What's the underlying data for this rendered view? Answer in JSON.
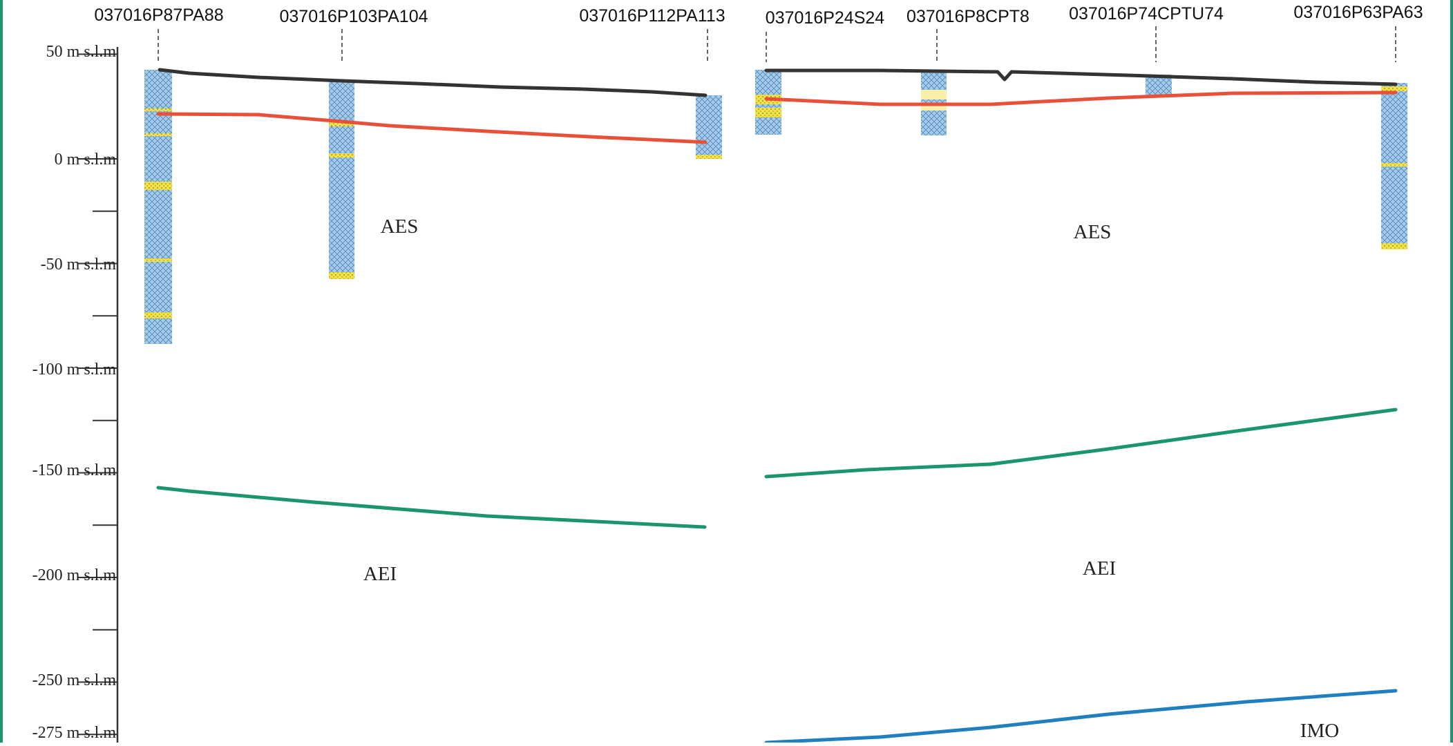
{
  "colors": {
    "surface": "#333333",
    "red_horizon": "#e8503a",
    "green_horizon": "#1a9570",
    "blue_horizon": "#1f7fbf",
    "borehole_fill": "#9cc3e0",
    "sand_layer": "#f2e24a",
    "frame": "#1a9570"
  },
  "axis": {
    "ticks": [
      {
        "label": "50 m s.l.m",
        "value": 50
      },
      {
        "label": "0 m s.l.m",
        "value": 0
      },
      {
        "label": "-50 m s.l.m",
        "value": -50
      },
      {
        "label": "-100 m s.l.m",
        "value": -100
      },
      {
        "label": "-150 m s.l.m",
        "value": -150
      },
      {
        "label": "-200 m s.l.m",
        "value": -200
      },
      {
        "label": "-250 m s.l.m",
        "value": -250
      },
      {
        "label": "-275 m s.l.m",
        "value": -275
      }
    ],
    "minor_ticks": [
      -25,
      -75,
      -125,
      -175,
      -225
    ]
  },
  "wells": [
    {
      "name": "037016P87PA88",
      "top": 44,
      "bottom": -87,
      "sand": [
        22,
        12,
        -11,
        -47,
        -74
      ]
    },
    {
      "name": "037016P103PA104",
      "top": 38,
      "bottom": -57,
      "sand": [
        18,
        2,
        -55
      ]
    },
    {
      "name": "037016P112PA113",
      "top": 32,
      "bottom": 0,
      "sand": [
        1
      ]
    },
    {
      "name": "037016P24S24",
      "top": 44,
      "bottom": 14,
      "sand": [
        30,
        22
      ]
    },
    {
      "name": "037016P8CPT8",
      "top": 43,
      "bottom": 13,
      "sand": [
        32,
        27
      ]
    },
    {
      "name": "037016P74CPTU74",
      "top": 40,
      "bottom": 31,
      "sand": []
    },
    {
      "name": "037016P63PA63",
      "top": 38,
      "bottom": -41,
      "sand": [
        34,
        -3,
        -40
      ]
    }
  ],
  "units": [
    {
      "name": "AES"
    },
    {
      "name": "AES"
    },
    {
      "name": "AEI"
    },
    {
      "name": "AEI"
    },
    {
      "name": "IMO"
    }
  ]
}
